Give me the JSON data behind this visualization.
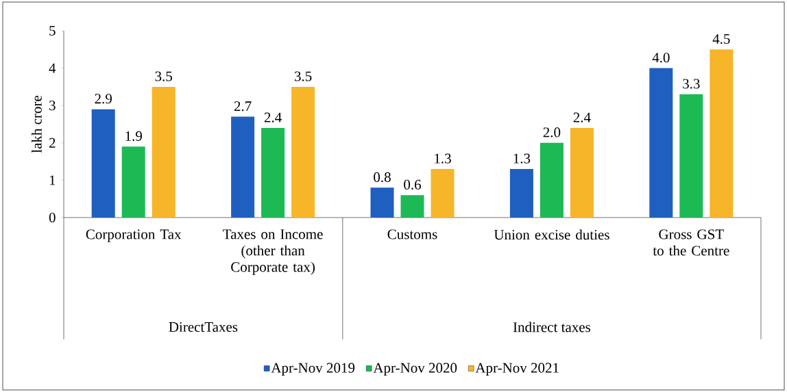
{
  "chart_data": {
    "type": "bar",
    "ylabel": "lakh crore",
    "categories": [
      "Corporation Tax",
      "Taxes on Income (other than Corporate tax)",
      "Customs",
      "Union excise duties",
      "Gross GST to the Centre"
    ],
    "series": [
      {
        "name": "Apr-Nov 2019",
        "color": "#1f5fbf",
        "values": [
          2.9,
          2.7,
          0.8,
          1.3,
          4.0
        ],
        "value_labels": [
          "2.9",
          "2.7",
          "0.8",
          "1.3",
          "4.0"
        ]
      },
      {
        "name": "Apr-Nov 2020",
        "color": "#1db954",
        "values": [
          1.9,
          2.4,
          0.6,
          2.0,
          3.3
        ],
        "value_labels": [
          "1.9",
          "2.4",
          "0.6",
          "2.0",
          "3.3"
        ]
      },
      {
        "name": "Apr-Nov 2021",
        "color": "#f7b529",
        "values": [
          3.5,
          3.5,
          1.3,
          2.4,
          4.5
        ],
        "value_labels": [
          "3.5",
          "3.5",
          "1.3",
          "2.4",
          "4.5"
        ]
      }
    ],
    "ylim": [
      0,
      5
    ],
    "yticks": [
      0,
      1,
      2,
      3,
      4,
      5
    ],
    "grid": false,
    "legend": "bottom",
    "annotations": [
      "DirectTaxes",
      "Indirect taxes"
    ]
  }
}
